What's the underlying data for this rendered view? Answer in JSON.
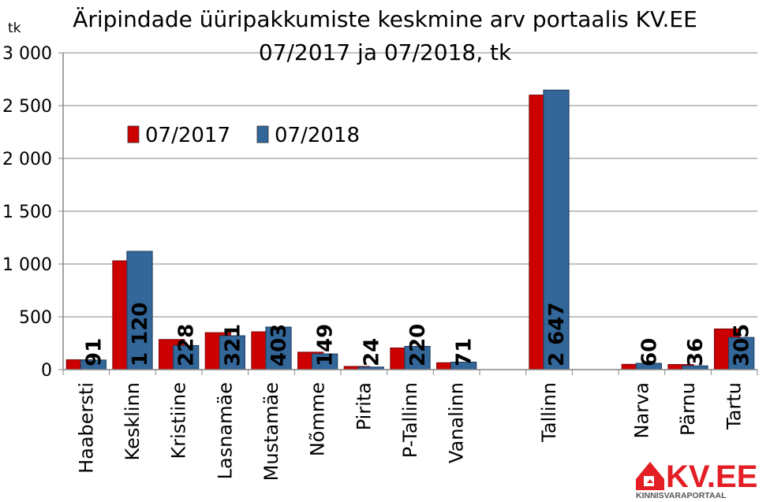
{
  "chart_data": {
    "type": "bar",
    "title": "Äripindade üüripakkumiste keskmine arv portaalis KV.EE",
    "subtitle": "07/2017 ja 07/2018, tk",
    "ylabel": "tk",
    "ylim": [
      0,
      3000
    ],
    "yticks": [
      0,
      500,
      1000,
      1500,
      2000,
      2500,
      3000
    ],
    "ytick_labels": [
      "0",
      "500",
      "1 000",
      "1 500",
      "2 000",
      "2 500",
      "3 000"
    ],
    "grid": true,
    "legend_position": "top-left",
    "categories": [
      "Haabersti",
      "Kesklinn",
      "Kristiine",
      "Lasnamäe",
      "Mustamäe",
      "Nõmme",
      "Pirita",
      "P-Tallinn",
      "Vanalinn",
      "",
      "Tallinn",
      "",
      "Narva",
      "Pärnu",
      "Tartu"
    ],
    "series": [
      {
        "name": "07/2017",
        "color": "#cc0000",
        "values": [
          93,
          1030,
          285,
          350,
          358,
          165,
          30,
          205,
          65,
          null,
          2600,
          null,
          50,
          48,
          385
        ]
      },
      {
        "name": "07/2018",
        "color": "#336699",
        "values": [
          91,
          1120,
          228,
          321,
          403,
          149,
          24,
          220,
          71,
          null,
          2647,
          null,
          60,
          36,
          305
        ],
        "data_labels": [
          "91",
          "1 120",
          "228",
          "321",
          "403",
          "149",
          "24",
          "220",
          "71",
          "",
          "2 647",
          "",
          "60",
          "36",
          "305"
        ]
      }
    ]
  },
  "logo": {
    "brand_text": "KV.EE",
    "tagline": "KINNISVARAPORTAAL",
    "brand_color": "#e31e24"
  }
}
